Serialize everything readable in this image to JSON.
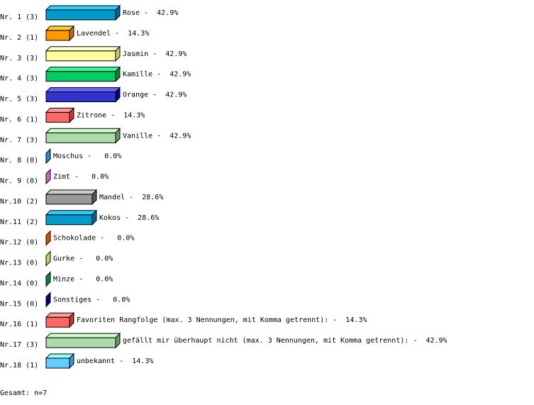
{
  "chart_data": {
    "type": "bar",
    "orientation": "horizontal",
    "style": "3d",
    "separator": " - ",
    "total_label": "Gesamt: n=7",
    "rows": [
      {
        "row_label": "Nr. 1",
        "count": 3,
        "name": "Rose",
        "percent": "42.9%",
        "colors": {
          "front": "#0099cc",
          "top": "#33ccff",
          "side": "#006699"
        }
      },
      {
        "row_label": "Nr. 2",
        "count": 1,
        "name": "Lavendel",
        "percent": "14.3%",
        "colors": {
          "front": "#ff9900",
          "top": "#ffcc33",
          "side": "#cc6600"
        }
      },
      {
        "row_label": "Nr. 3",
        "count": 3,
        "name": "Jasmin",
        "percent": "42.9%",
        "colors": {
          "front": "#ffff99",
          "top": "#ffffcc",
          "side": "#cccc66"
        }
      },
      {
        "row_label": "Nr. 4",
        "count": 3,
        "name": "Kamille",
        "percent": "42.9%",
        "colors": {
          "front": "#00cc66",
          "top": "#33ff99",
          "side": "#008833"
        }
      },
      {
        "row_label": "Nr. 5",
        "count": 3,
        "name": "Orange",
        "percent": "42.9%",
        "colors": {
          "front": "#3333cc",
          "top": "#6666ff",
          "side": "#000099"
        }
      },
      {
        "row_label": "Nr. 6",
        "count": 1,
        "name": "Zitrone",
        "percent": "14.3%",
        "colors": {
          "front": "#ff6666",
          "top": "#ff9999",
          "side": "#cc3333"
        }
      },
      {
        "row_label": "Nr. 7",
        "count": 3,
        "name": "Vanille",
        "percent": "42.9%",
        "colors": {
          "front": "#aaddaa",
          "top": "#ccffcc",
          "side": "#669966"
        }
      },
      {
        "row_label": "Nr. 8",
        "count": 0,
        "name": "Moschus",
        "percent": "0.0%",
        "colors": {
          "front": "#3399cc",
          "top": "#66ccff",
          "side": "#3388bb"
        }
      },
      {
        "row_label": "Nr. 9",
        "count": 0,
        "name": "Zimt",
        "percent": "0.0%",
        "colors": {
          "front": "#cc66cc",
          "top": "#ff99ff",
          "side": "#cc66cc"
        }
      },
      {
        "row_label": "Nr.10",
        "count": 2,
        "name": "Mandel",
        "percent": "28.6%",
        "colors": {
          "front": "#999999",
          "top": "#cccccc",
          "side": "#555555"
        }
      },
      {
        "row_label": "Nr.11",
        "count": 2,
        "name": "Kokos",
        "percent": "28.6%",
        "colors": {
          "front": "#0099cc",
          "top": "#33ccff",
          "side": "#006699"
        }
      },
      {
        "row_label": "Nr.12",
        "count": 0,
        "name": "Schokolade",
        "percent": "0.0%",
        "colors": {
          "front": "#cc5500",
          "top": "#ff8833",
          "side": "#cc5500"
        }
      },
      {
        "row_label": "Nr.13",
        "count": 0,
        "name": "Gurke",
        "percent": "0.0%",
        "colors": {
          "front": "#cccc66",
          "top": "#ffff99",
          "side": "#cccc66"
        }
      },
      {
        "row_label": "Nr.14",
        "count": 0,
        "name": "Minze",
        "percent": "0.0%",
        "colors": {
          "front": "#008833",
          "top": "#33cc66",
          "side": "#008833"
        }
      },
      {
        "row_label": "Nr.15",
        "count": 0,
        "name": "Sonstiges",
        "percent": "0.0%",
        "colors": {
          "front": "#000080",
          "top": "#3333cc",
          "side": "#000080"
        }
      },
      {
        "row_label": "Nr.16",
        "count": 1,
        "name": "Favoriten Rangfolge (max. 3 Nennungen, mit Komma getrennt):",
        "percent": "14.3%",
        "colors": {
          "front": "#ff6666",
          "top": "#ff9999",
          "side": "#cc3333"
        }
      },
      {
        "row_label": "Nr.17",
        "count": 3,
        "name": "gefällt mir überhaupt nicht (max. 3 Nennungen, mit Komma getrennt):",
        "percent": "42.9%",
        "colors": {
          "front": "#aaddaa",
          "top": "#ccffcc",
          "side": "#669966"
        }
      },
      {
        "row_label": "Nr.18",
        "count": 1,
        "name": "unbekannt",
        "percent": "14.3%",
        "colors": {
          "front": "#66ccff",
          "top": "#99ffff",
          "side": "#3399cc"
        }
      }
    ]
  }
}
